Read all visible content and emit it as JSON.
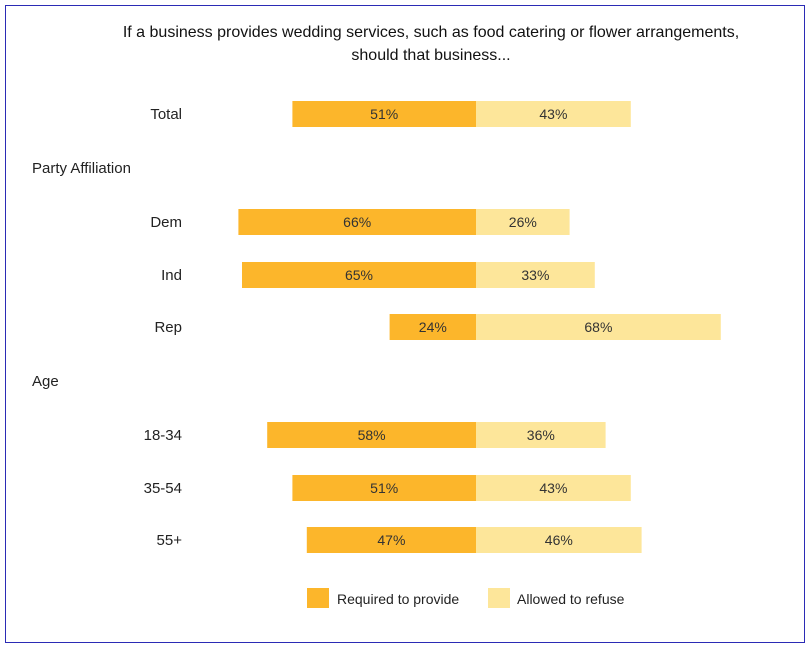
{
  "chart_data": {
    "type": "bar",
    "orientation": "horizontal-diverging",
    "title_lines": [
      "If a business provides wedding services, such as food catering or flower arrangements,",
      "should that business..."
    ],
    "rows": [
      {
        "kind": "bar",
        "label": "Total",
        "required": 51,
        "refuse": 43,
        "required_label": "51%",
        "refuse_label": "43%"
      },
      {
        "kind": "group",
        "label": "Party Affiliation"
      },
      {
        "kind": "bar",
        "label": "Dem",
        "required": 66,
        "refuse": 26,
        "required_label": "66%",
        "refuse_label": "26%"
      },
      {
        "kind": "bar",
        "label": "Ind",
        "required": 65,
        "refuse": 33,
        "required_label": "65%",
        "refuse_label": "33%"
      },
      {
        "kind": "bar",
        "label": "Rep",
        "required": 24,
        "refuse": 68,
        "required_label": "24%",
        "refuse_label": "68%"
      },
      {
        "kind": "group",
        "label": "Age"
      },
      {
        "kind": "bar",
        "label": "18-34",
        "required": 58,
        "refuse": 36,
        "required_label": "58%",
        "refuse_label": "36%"
      },
      {
        "kind": "bar",
        "label": "35-54",
        "required": 51,
        "refuse": 43,
        "required_label": "51%",
        "refuse_label": "43%"
      },
      {
        "kind": "bar",
        "label": "55+",
        "required": 47,
        "refuse": 46,
        "required_label": "47%",
        "refuse_label": "46%"
      }
    ],
    "series": [
      {
        "name": "Required to provide",
        "key": "required",
        "color": "#fcb62b"
      },
      {
        "name": "Allowed to refuse",
        "key": "refuse",
        "color": "#fde69a"
      }
    ],
    "legend_position": "bottom"
  }
}
